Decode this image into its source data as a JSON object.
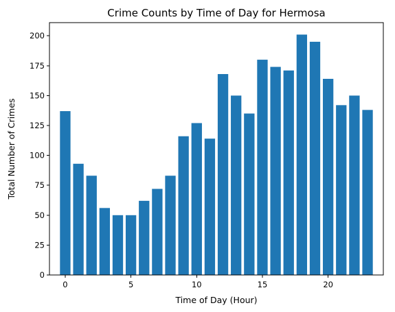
{
  "chart_data": {
    "type": "bar",
    "title": "Crime Counts by Time of Day for Hermosa",
    "xlabel": "Time of Day (Hour)",
    "ylabel": "Total Number of Crimes",
    "x": [
      0,
      1,
      2,
      3,
      4,
      5,
      6,
      7,
      8,
      9,
      10,
      11,
      12,
      13,
      14,
      15,
      16,
      17,
      18,
      19,
      20,
      21,
      22,
      23
    ],
    "values": [
      137,
      93,
      83,
      56,
      50,
      50,
      62,
      72,
      83,
      116,
      127,
      114,
      168,
      150,
      135,
      180,
      174,
      171,
      201,
      195,
      164,
      142,
      150,
      138
    ],
    "xlim": [
      -1.2,
      24.2
    ],
    "ylim": [
      0,
      211
    ],
    "xticks": [
      0,
      5,
      10,
      15,
      20
    ],
    "yticks": [
      0,
      25,
      50,
      75,
      100,
      125,
      150,
      175,
      200
    ],
    "bar_color": "#1f77b4",
    "grid": false,
    "legend": "none"
  }
}
